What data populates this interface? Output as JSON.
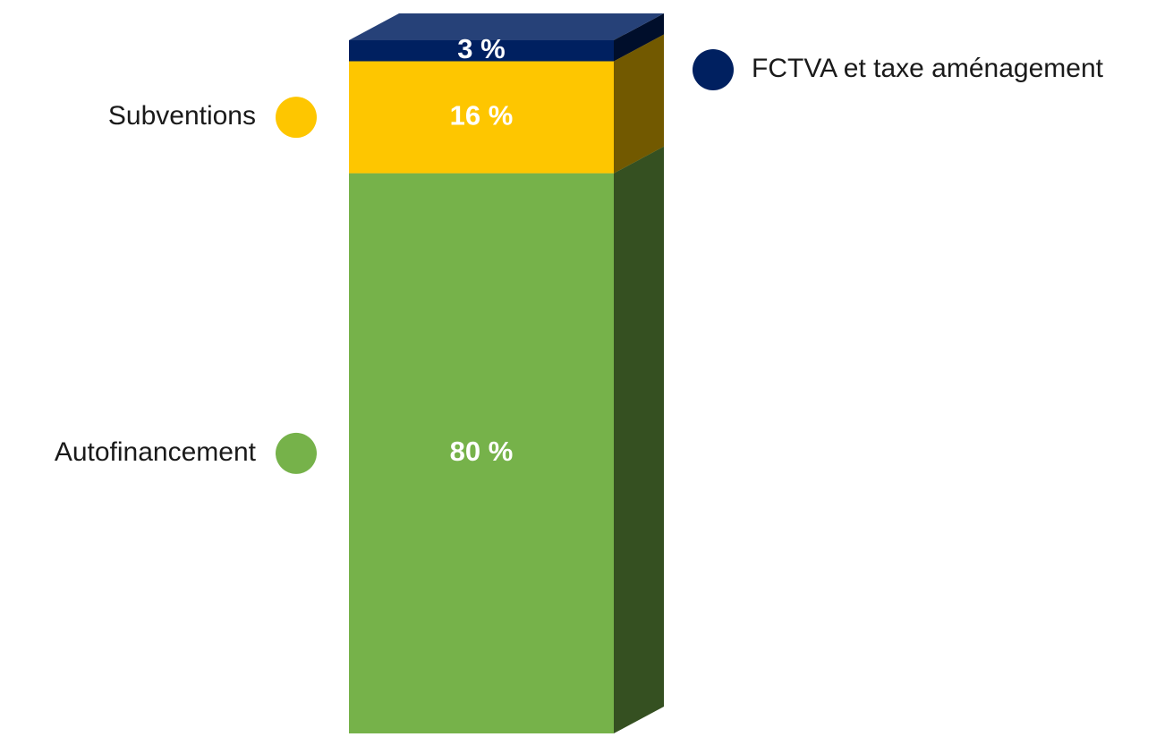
{
  "chart_data": {
    "type": "stacked-bar-3d",
    "series": [
      {
        "name": "Autofinancement",
        "color": "#76b24a",
        "values": [
          80
        ],
        "value_labels": [
          "80 %"
        ]
      },
      {
        "name": "Subventions",
        "color": "#fec600",
        "values": [
          16
        ],
        "value_labels": [
          "16 %"
        ]
      },
      {
        "name": "FCTVA et taxe aménagement",
        "color": "#002060",
        "values": [
          3
        ],
        "value_labels": [
          "3 %"
        ]
      }
    ]
  }
}
